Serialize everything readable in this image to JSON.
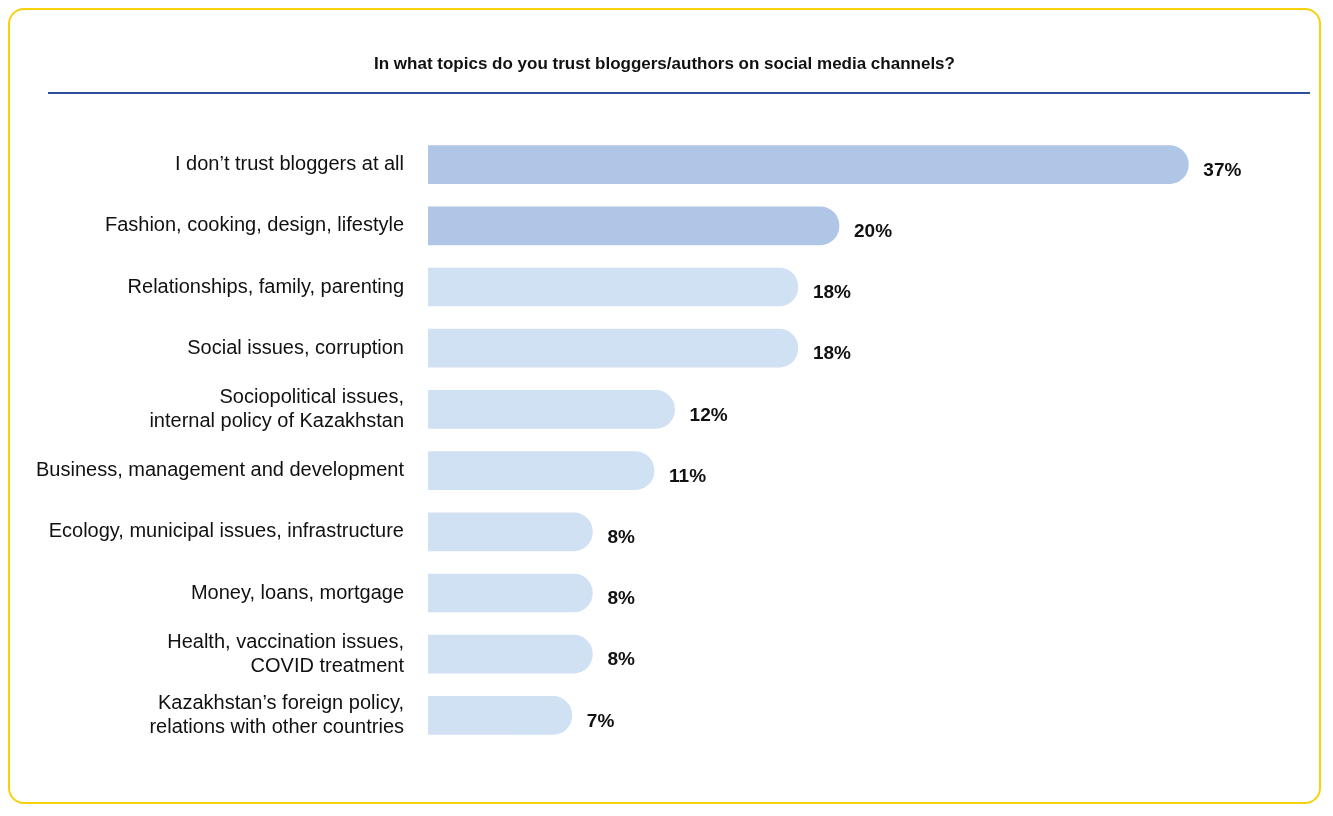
{
  "chart_data": {
    "type": "bar",
    "orientation": "horizontal",
    "title": "In what topics do you trust bloggers/authors on social media channels?",
    "categories": [
      "I don’t trust bloggers at all",
      "Fashion, cooking, design, lifestyle",
      "Relationships, family, parenting",
      "Social issues, corruption",
      "Sociopolitical issues, internal policy of Kazakhstan",
      "Business, management and development",
      "Ecology, municipal issues, infrastructure",
      "Money, loans, mortgage",
      "Health, vaccination issues, COVID treatment",
      "Kazakhstan’s foreign policy, relations with other countries"
    ],
    "values": [
      37,
      20,
      18,
      18,
      12,
      11,
      8,
      8,
      8,
      7
    ],
    "colors": [
      "#b0c6e6",
      "#b0c6e6",
      "#d0e1f4",
      "#d0e1f4",
      "#d0e1f4",
      "#d0e1f4",
      "#d0e1f4",
      "#d0e1f4",
      "#d0e1f4",
      "#d0e1f4"
    ],
    "value_labels": [
      "37%",
      "20%",
      "18%",
      "18%",
      "12%",
      "11%",
      "8%",
      "8%",
      "8%",
      "7%"
    ],
    "legend": false
  }
}
